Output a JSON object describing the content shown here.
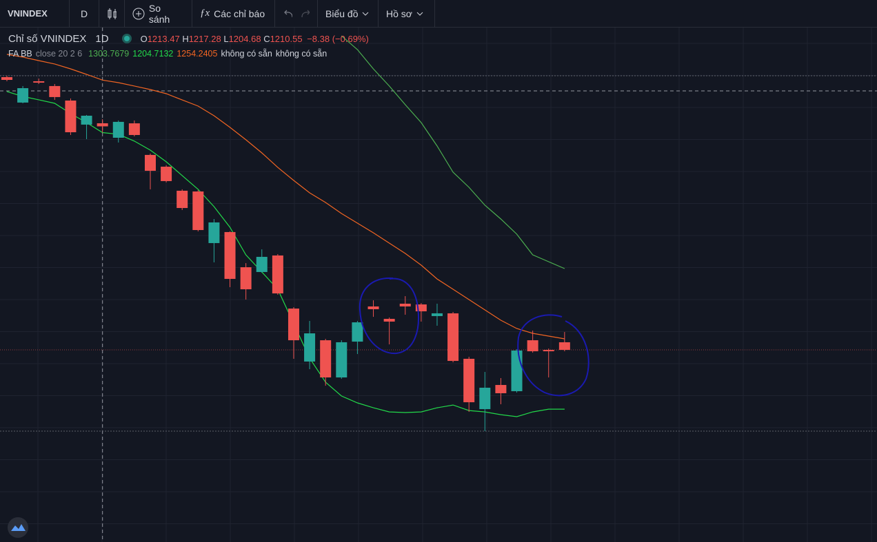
{
  "toolbar": {
    "symbol": "VNINDEX",
    "interval": "D",
    "compare": "So sánh",
    "indicators": "Các chỉ báo",
    "chart": "Biểu đồ",
    "profile": "Hồ sơ"
  },
  "chart_data": {
    "type": "candlestick",
    "title": "Chỉ số VNINDEX",
    "interval": "1D",
    "ohlc_labels": [
      "O",
      "H",
      "L",
      "C"
    ],
    "change": "−8.38 (−0.69%)",
    "indicator": {
      "name": "FA BB",
      "params": "close 20 2 6",
      "unavailable": [
        "không có sẵn",
        "không có sẵn"
      ]
    },
    "open": [
      1257.0,
      1233.0,
      1253.1,
      1248.6,
      1234.9,
      1212.2,
      1213.47,
      1199.8,
      1213.4,
      1183.6,
      1172.5,
      1149.8,
      1149.1,
      1100.4,
      1110.8,
      1077.6,
      1073.1,
      1088.7,
      1038.6,
      988.6,
      1008.7,
      973.6,
      1007.4,
      1040.6,
      1028.9,
      1043.2,
      1042.5,
      1031.5,
      1034.1,
      991.2,
      943.7,
      966.5,
      960.6,
      1008.7,
      999.6,
      1006.8
    ],
    "high": [
      1258.3,
      1248.6,
      1255.7,
      1250.5,
      1236.9,
      1221.3,
      1217.28,
      1216.1,
      1216.1,
      1184.9,
      1173.8,
      1151.1,
      1150.4,
      1123.1,
      1111.4,
      1081.5,
      1094.5,
      1090.0,
      1039.9,
      1026.9,
      1010.0,
      1008.7,
      1026.9,
      1046.4,
      1030.2,
      1050.3,
      1043.8,
      1043.2,
      1035.4,
      993.1,
      978.8,
      973.0,
      1000.3,
      1017.8,
      1000.9,
      1016.5
    ],
    "low": [
      1253.1,
      1232.3,
      1250.5,
      1235.6,
      1202.4,
      1198.5,
      1204.68,
      1195.3,
      1201.1,
      1151.1,
      1157.6,
      1131.6,
      1111.4,
      1082.2,
      1058.8,
      1047.1,
      1072.4,
      1051.6,
      991.2,
      981.4,
      965.8,
      972.3,
      995.7,
      1030.8,
      1004.8,
      1032.8,
      1026.3,
      1022.4,
      987.9,
      941.1,
      922.9,
      948.3,
      959.3,
      997.0,
      973.6,
      998.3
    ],
    "close": [
      1254.4,
      1246.6,
      1251.8,
      1238.2,
      1205.0,
      1220.6,
      1210.55,
      1214.8,
      1202.4,
      1168.6,
      1158.9,
      1133.5,
      1112.7,
      1119.9,
      1066.6,
      1056.8,
      1087.4,
      1052.9,
      1008.7,
      1015.2,
      973.6,
      1006.8,
      1025.6,
      1038.0,
      1026.3,
      1040.6,
      1036.0,
      1034.1,
      989.2,
      950.2,
      963.9,
      958.7,
      999.0,
      998.3,
      998.3,
      999.6
    ],
    "up_color": "#26a69a",
    "down_color": "#ef5350",
    "series": [
      {
        "color": "#4caf50",
        "values": [
          null,
          null,
          null,
          null,
          null,
          null,
          1303.7679,
          null,
          null,
          null,
          null,
          null,
          null,
          null,
          null,
          null,
          null,
          null,
          null,
          null,
          null,
          1296.0,
          1283.0,
          1264.8,
          1248.6,
          1231.0,
          1214.1,
          1192.0,
          1167.3,
          1153.0,
          1136.1,
          1123.1,
          1108.8,
          1089.3,
          1082.8,
          1076.3
        ]
      },
      {
        "color": "#22d94a",
        "values": [
          1243.4,
          1238.8,
          1235.6,
          1232.3,
          1222.6,
          1214.1,
          1204.7132,
          1203.1,
          1196.6,
          1188.1,
          1177.1,
          1164.1,
          1151.1,
          1134.8,
          1115.3,
          1089.3,
          1073.1,
          1056.8,
          1024.3,
          991.8,
          969.1,
          956.1,
          949.6,
          945.0,
          941.1,
          940.5,
          941.1,
          945.0,
          947.6,
          942.4,
          941.1,
          938.5,
          936.6,
          941.1,
          943.7,
          943.7
        ]
      },
      {
        "color": "#f26522",
        "values": [
          1278.5,
          1275.9,
          1272.6,
          1269.4,
          1264.8,
          1259.6,
          1254.2405,
          1251.8,
          1248.6,
          1245.3,
          1241.4,
          1235.5,
          1229.7,
          1220.6,
          1209.6,
          1197.9,
          1185.5,
          1171.8,
          1159.5,
          1147.8,
          1138.7,
          1128.3,
          1119.2,
          1110.1,
          1100.4,
          1090.6,
          1079.6,
          1066.5,
          1056.8,
          1047.1,
          1037.3,
          1027.6,
          1019.8,
          1015.2,
          1012.6,
          1010.0
        ]
      }
    ],
    "ylim": [
      818.3,
      1303.8
    ]
  }
}
